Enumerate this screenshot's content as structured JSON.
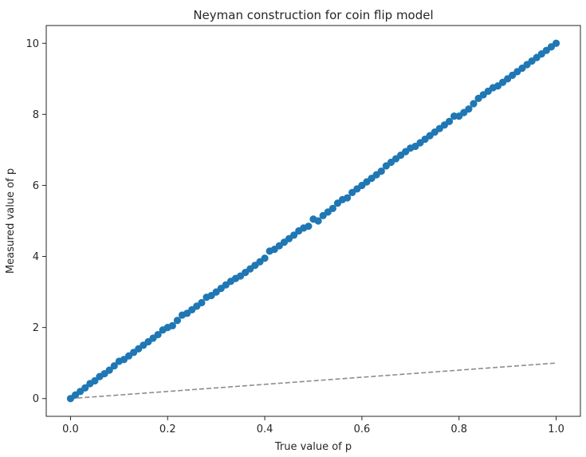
{
  "chart_data": {
    "type": "scatter",
    "title": "Neyman construction for coin flip model",
    "xlabel": "True value of p",
    "ylabel": "Measured value of p",
    "xlim": [
      -0.05,
      1.05
    ],
    "ylim": [
      -0.5,
      10.5
    ],
    "xticks": [
      "0.0",
      "0.2",
      "0.4",
      "0.6",
      "0.8",
      "1.0"
    ],
    "yticks": [
      "0",
      "2",
      "4",
      "6",
      "8",
      "10"
    ],
    "grid": false,
    "series": [
      {
        "kind": "scatter",
        "color": "#1f77b4",
        "x": [
          0.0,
          0.01,
          0.02,
          0.03,
          0.04,
          0.05,
          0.06,
          0.07,
          0.08,
          0.09,
          0.1,
          0.11,
          0.12,
          0.13,
          0.14,
          0.15,
          0.16,
          0.17,
          0.18,
          0.19,
          0.2,
          0.21,
          0.22,
          0.23,
          0.24,
          0.25,
          0.26,
          0.27,
          0.28,
          0.29,
          0.3,
          0.31,
          0.32,
          0.33,
          0.34,
          0.35,
          0.36,
          0.37,
          0.38,
          0.39,
          0.4,
          0.41,
          0.42,
          0.43,
          0.44,
          0.45,
          0.46,
          0.47,
          0.48,
          0.49,
          0.5,
          0.51,
          0.52,
          0.53,
          0.54,
          0.55,
          0.56,
          0.57,
          0.58,
          0.59,
          0.6,
          0.61,
          0.62,
          0.63,
          0.64,
          0.65,
          0.66,
          0.67,
          0.68,
          0.69,
          0.7,
          0.71,
          0.72,
          0.73,
          0.74,
          0.75,
          0.76,
          0.77,
          0.78,
          0.79,
          0.8,
          0.81,
          0.82,
          0.83,
          0.84,
          0.85,
          0.86,
          0.87,
          0.88,
          0.89,
          0.9,
          0.91,
          0.92,
          0.93,
          0.94,
          0.95,
          0.96,
          0.97,
          0.98,
          0.99,
          1.0
        ],
        "y": [
          0.0,
          0.1,
          0.2,
          0.3,
          0.42,
          0.5,
          0.62,
          0.7,
          0.8,
          0.92,
          1.05,
          1.1,
          1.2,
          1.3,
          1.4,
          1.5,
          1.6,
          1.7,
          1.8,
          1.93,
          2.0,
          2.05,
          2.2,
          2.35,
          2.4,
          2.5,
          2.6,
          2.7,
          2.85,
          2.9,
          3.0,
          3.1,
          3.2,
          3.3,
          3.38,
          3.45,
          3.55,
          3.65,
          3.75,
          3.85,
          3.95,
          4.15,
          4.2,
          4.3,
          4.4,
          4.5,
          4.6,
          4.72,
          4.8,
          4.85,
          5.05,
          5.0,
          5.15,
          5.25,
          5.35,
          5.5,
          5.6,
          5.65,
          5.8,
          5.9,
          6.0,
          6.1,
          6.2,
          6.3,
          6.4,
          6.55,
          6.65,
          6.75,
          6.85,
          6.95,
          7.05,
          7.1,
          7.2,
          7.3,
          7.4,
          7.5,
          7.6,
          7.7,
          7.8,
          7.95,
          7.95,
          8.05,
          8.15,
          8.3,
          8.45,
          8.55,
          8.65,
          8.75,
          8.8,
          8.9,
          9.0,
          9.1,
          9.2,
          9.3,
          9.4,
          9.5,
          9.6,
          9.7,
          9.8,
          9.9,
          10.0
        ]
      },
      {
        "kind": "line",
        "style": "dashed",
        "color": "#8c8c8c",
        "x": [
          0.0,
          1.0
        ],
        "y": [
          0.0,
          1.0
        ]
      }
    ]
  }
}
